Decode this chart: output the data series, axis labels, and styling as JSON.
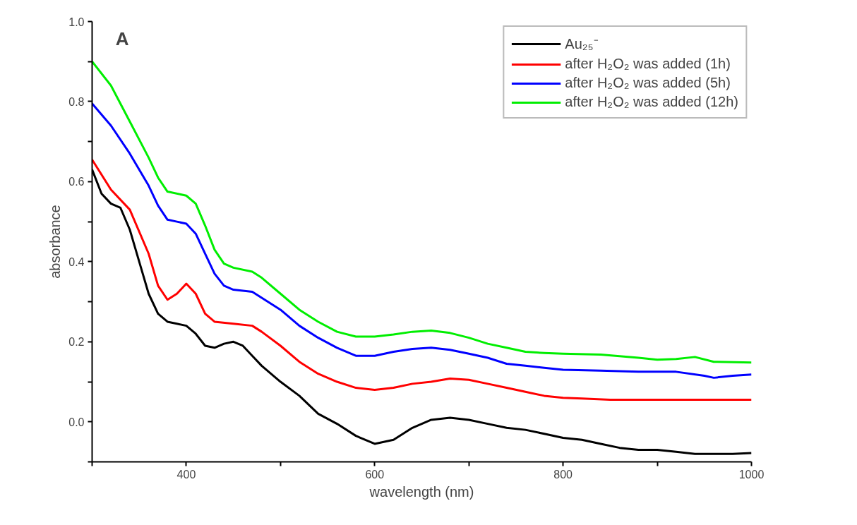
{
  "chart_data": {
    "type": "line",
    "xlabel": "wavelength (nm)",
    "ylabel": "absorbance",
    "annotations": [
      "A"
    ],
    "xlim": [
      300,
      1000
    ],
    "ylim": [
      -0.1,
      1.0
    ],
    "xticks": [
      {
        "value": 300,
        "label": null
      },
      400,
      {
        "value": 500,
        "label": null
      },
      600,
      {
        "value": 700,
        "label": null
      },
      800,
      {
        "value": 900,
        "label": null
      },
      1000
    ],
    "yticks": [
      {
        "value": -0.1,
        "label": null
      },
      {
        "value": 0.0,
        "label": "0.0"
      },
      {
        "value": 0.1,
        "label": null
      },
      0.2,
      {
        "value": 0.3,
        "label": null
      },
      0.4,
      {
        "value": 0.5,
        "label": null
      },
      0.6,
      {
        "value": 0.7,
        "label": null
      },
      0.8,
      {
        "value": 0.9,
        "label": null
      },
      {
        "value": 1.0,
        "label": "1.0"
      }
    ],
    "grid": false,
    "legend": "top right",
    "line_style": "solid",
    "marker": "none",
    "series": [
      {
        "name": "Au₂₅⁻",
        "color": "#000000",
        "x": [
          300,
          310,
          320,
          330,
          340,
          350,
          360,
          370,
          380,
          390,
          400,
          410,
          420,
          430,
          440,
          450,
          460,
          470,
          480,
          500,
          520,
          540,
          560,
          580,
          600,
          620,
          640,
          660,
          680,
          700,
          720,
          740,
          760,
          780,
          800,
          820,
          840,
          860,
          880,
          900,
          920,
          940,
          960,
          980,
          1000
        ],
        "values": [
          0.63,
          0.57,
          0.545,
          0.535,
          0.48,
          0.4,
          0.32,
          0.27,
          0.25,
          0.245,
          0.24,
          0.22,
          0.19,
          0.185,
          0.195,
          0.2,
          0.19,
          0.165,
          0.14,
          0.1,
          0.065,
          0.02,
          -0.005,
          -0.035,
          -0.055,
          -0.045,
          -0.015,
          0.005,
          0.01,
          0.005,
          -0.005,
          -0.015,
          -0.02,
          -0.03,
          -0.04,
          -0.045,
          -0.055,
          -0.065,
          -0.07,
          -0.07,
          -0.075,
          -0.08,
          -0.08,
          -0.08,
          -0.078
        ]
      },
      {
        "name": "after H₂O₂ was added (1h)",
        "color": "#ff0000",
        "x": [
          300,
          320,
          340,
          360,
          370,
          380,
          390,
          400,
          410,
          420,
          430,
          450,
          470,
          480,
          500,
          520,
          540,
          560,
          580,
          600,
          620,
          640,
          660,
          680,
          700,
          720,
          740,
          760,
          780,
          800,
          820,
          850,
          900,
          950,
          1000
        ],
        "values": [
          0.655,
          0.58,
          0.53,
          0.42,
          0.34,
          0.305,
          0.32,
          0.345,
          0.32,
          0.27,
          0.25,
          0.245,
          0.24,
          0.225,
          0.19,
          0.15,
          0.12,
          0.1,
          0.085,
          0.08,
          0.085,
          0.095,
          0.1,
          0.108,
          0.105,
          0.095,
          0.085,
          0.075,
          0.065,
          0.06,
          0.058,
          0.055,
          0.055,
          0.055,
          0.055
        ]
      },
      {
        "name": "after H₂O₂ was added (5h)",
        "color": "#0000ff",
        "x": [
          300,
          320,
          340,
          360,
          370,
          380,
          390,
          400,
          410,
          420,
          430,
          440,
          450,
          470,
          480,
          500,
          520,
          540,
          560,
          580,
          600,
          620,
          640,
          660,
          680,
          700,
          720,
          740,
          760,
          780,
          800,
          840,
          880,
          920,
          950,
          960,
          980,
          1000
        ],
        "values": [
          0.795,
          0.74,
          0.67,
          0.59,
          0.54,
          0.505,
          0.5,
          0.495,
          0.47,
          0.42,
          0.37,
          0.34,
          0.33,
          0.325,
          0.31,
          0.28,
          0.24,
          0.21,
          0.185,
          0.165,
          0.165,
          0.175,
          0.182,
          0.185,
          0.18,
          0.17,
          0.16,
          0.145,
          0.14,
          0.135,
          0.13,
          0.128,
          0.125,
          0.125,
          0.115,
          0.11,
          0.115,
          0.118
        ]
      },
      {
        "name": "after H₂O₂ was added (12h)",
        "color": "#00ee00",
        "x": [
          300,
          320,
          340,
          360,
          370,
          380,
          400,
          410,
          420,
          430,
          440,
          450,
          470,
          480,
          500,
          520,
          540,
          560,
          580,
          600,
          620,
          640,
          660,
          680,
          700,
          720,
          740,
          760,
          780,
          800,
          840,
          880,
          900,
          920,
          940,
          960,
          1000
        ],
        "values": [
          0.9,
          0.84,
          0.75,
          0.66,
          0.61,
          0.575,
          0.565,
          0.545,
          0.49,
          0.43,
          0.395,
          0.385,
          0.375,
          0.36,
          0.32,
          0.28,
          0.25,
          0.225,
          0.213,
          0.213,
          0.218,
          0.225,
          0.228,
          0.222,
          0.21,
          0.195,
          0.185,
          0.175,
          0.172,
          0.17,
          0.168,
          0.16,
          0.155,
          0.157,
          0.162,
          0.15,
          0.148
        ]
      }
    ]
  }
}
